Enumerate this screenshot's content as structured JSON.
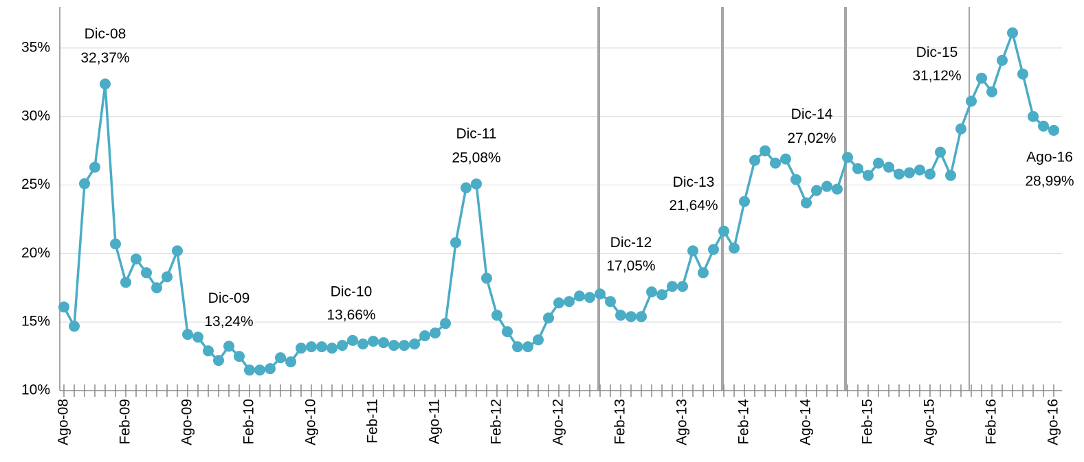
{
  "chart_data": {
    "type": "line",
    "categories": [
      "Ago-08",
      null,
      null,
      null,
      null,
      null,
      "Feb-09",
      null,
      null,
      null,
      null,
      null,
      "Ago-09",
      null,
      null,
      null,
      null,
      null,
      "Feb-10",
      null,
      null,
      null,
      null,
      null,
      "Ago-10",
      null,
      null,
      null,
      null,
      null,
      "Feb-11",
      null,
      null,
      null,
      null,
      null,
      "Ago-11",
      null,
      null,
      null,
      null,
      null,
      "Feb-12",
      null,
      null,
      null,
      null,
      null,
      "Ago-12",
      null,
      null,
      null,
      null,
      null,
      "Feb-13",
      null,
      null,
      null,
      null,
      null,
      "Ago-13",
      null,
      null,
      null,
      null,
      null,
      "Feb-14",
      null,
      null,
      null,
      null,
      null,
      "Ago-14",
      null,
      null,
      null,
      null,
      null,
      "Feb-15",
      null,
      null,
      null,
      null,
      null,
      "Ago-15",
      null,
      null,
      null,
      null,
      null,
      "Feb-16",
      null,
      null,
      null,
      null,
      null,
      "Ago-16"
    ],
    "series": [
      {
        "color": "#4bacc6",
        "values": [
          16.1,
          14.7,
          25.1,
          26.3,
          32.37,
          20.7,
          17.9,
          19.6,
          18.6,
          17.5,
          18.3,
          20.2,
          14.1,
          13.9,
          12.9,
          12.2,
          13.24,
          12.5,
          11.5,
          11.5,
          11.6,
          12.4,
          12.1,
          13.1,
          13.2,
          13.2,
          13.1,
          13.3,
          13.66,
          13.4,
          13.6,
          13.5,
          13.3,
          13.3,
          13.4,
          14.0,
          14.2,
          14.9,
          20.8,
          24.8,
          25.08,
          18.2,
          15.5,
          14.3,
          13.2,
          13.2,
          13.7,
          15.3,
          16.4,
          16.5,
          16.9,
          16.8,
          17.05,
          16.5,
          15.5,
          15.4,
          15.4,
          17.2,
          17.0,
          17.6,
          17.6,
          20.2,
          18.6,
          20.3,
          21.64,
          20.4,
          23.8,
          26.8,
          27.5,
          26.6,
          26.9,
          25.4,
          23.7,
          24.6,
          24.9,
          24.7,
          27.02,
          26.2,
          25.7,
          26.6,
          26.3,
          25.8,
          25.9,
          26.1,
          25.8,
          27.4,
          25.7,
          29.1,
          31.12,
          32.8,
          31.8,
          34.1,
          36.1,
          33.1,
          30.0,
          29.3,
          28.99
        ],
        "point_names": [
          null,
          null,
          null,
          null,
          "Dic-08",
          null,
          null,
          null,
          null,
          null,
          null,
          null,
          null,
          null,
          null,
          null,
          "Dic-09",
          null,
          null,
          null,
          null,
          null,
          null,
          null,
          null,
          null,
          null,
          null,
          "Dic-10",
          null,
          null,
          null,
          null,
          null,
          null,
          null,
          null,
          null,
          null,
          null,
          "Dic-11",
          null,
          null,
          null,
          null,
          null,
          null,
          null,
          null,
          null,
          null,
          null,
          "Dic-12",
          null,
          null,
          null,
          null,
          null,
          null,
          null,
          null,
          null,
          null,
          null,
          "Dic-13",
          null,
          null,
          null,
          null,
          null,
          null,
          null,
          null,
          null,
          null,
          null,
          "Dic-14",
          null,
          null,
          null,
          null,
          null,
          null,
          null,
          null,
          null,
          null,
          null,
          "Dic-15",
          null,
          null,
          null,
          null,
          null,
          null,
          null,
          "Ago-16"
        ],
        "value_labels": [
          null,
          null,
          null,
          null,
          "32,37%",
          null,
          null,
          null,
          null,
          null,
          null,
          null,
          null,
          null,
          null,
          null,
          "13,24%",
          null,
          null,
          null,
          null,
          null,
          null,
          null,
          null,
          null,
          null,
          null,
          "13,66%",
          null,
          null,
          null,
          null,
          null,
          null,
          null,
          null,
          null,
          null,
          null,
          "25,08%",
          null,
          null,
          null,
          null,
          null,
          null,
          null,
          null,
          null,
          null,
          null,
          "17,05%",
          null,
          null,
          null,
          null,
          null,
          null,
          null,
          null,
          null,
          null,
          null,
          "21,64%",
          null,
          null,
          null,
          null,
          null,
          null,
          null,
          null,
          null,
          null,
          null,
          "27,02%",
          null,
          null,
          null,
          null,
          null,
          null,
          null,
          null,
          null,
          null,
          null,
          "31,12%",
          null,
          null,
          null,
          null,
          null,
          null,
          null,
          "28,99%"
        ]
      }
    ],
    "ylim": [
      10,
      38
    ],
    "yticks": [
      {
        "value": 10,
        "label": "10%"
      },
      {
        "value": 15,
        "label": "15%"
      },
      {
        "value": 20,
        "label": "20%"
      },
      {
        "value": 25,
        "label": "25%"
      },
      {
        "value": 30,
        "label": "30%"
      },
      {
        "value": 35,
        "label": "35%"
      }
    ],
    "grid": true
  }
}
